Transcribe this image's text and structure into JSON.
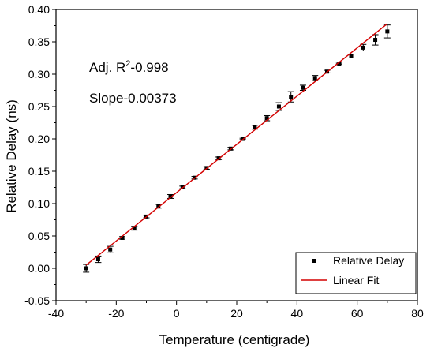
{
  "chart_data": {
    "type": "scatter",
    "title": "",
    "xlabel": "Temperature (centigrade)",
    "ylabel": "Relative Delay (ns)",
    "xlim": [
      -40,
      80
    ],
    "ylim": [
      -0.05,
      0.4
    ],
    "x_ticks": [
      "-40",
      "-20",
      "0",
      "20",
      "40",
      "60",
      "80"
    ],
    "y_ticks": [
      "-0.05",
      "0.00",
      "0.05",
      "0.10",
      "0.15",
      "0.20",
      "0.25",
      "0.30",
      "0.35",
      "0.40"
    ],
    "x_tick_values": [
      -40,
      -20,
      0,
      20,
      40,
      60,
      80
    ],
    "y_tick_values": [
      -0.05,
      0.0,
      0.05,
      0.1,
      0.15,
      0.2,
      0.25,
      0.3,
      0.35,
      0.4
    ],
    "grid": false,
    "legend_position": "bottom-right",
    "annotations": {
      "r2_prefix": "Adj. R",
      "r2_sup": "2",
      "r2_value": "-0.998",
      "slope": "Slope-0.00373"
    },
    "series": [
      {
        "name": "Relative Delay",
        "kind": "points",
        "color": "#000000",
        "x": [
          -30,
          -26,
          -22,
          -18,
          -14,
          -10,
          -6,
          -2,
          2,
          6,
          10,
          14,
          18,
          22,
          26,
          30,
          34,
          38,
          42,
          46,
          50,
          54,
          58,
          62,
          66,
          70
        ],
        "y": [
          0.0,
          0.014,
          0.029,
          0.047,
          0.062,
          0.08,
          0.096,
          0.111,
          0.125,
          0.14,
          0.155,
          0.17,
          0.185,
          0.2,
          0.218,
          0.232,
          0.25,
          0.265,
          0.279,
          0.294,
          0.304,
          0.316,
          0.328,
          0.341,
          0.353,
          0.366
        ],
        "err": [
          0.006,
          0.005,
          0.005,
          0.002,
          0.003,
          0.002,
          0.003,
          0.003,
          0.002,
          0.002,
          0.002,
          0.002,
          0.002,
          0.001,
          0.003,
          0.004,
          0.006,
          0.008,
          0.004,
          0.004,
          0.002,
          0.001,
          0.003,
          0.005,
          0.008,
          0.01
        ]
      },
      {
        "name": "Linear Fit",
        "kind": "line",
        "color": "#d40000",
        "x": [
          -30,
          70
        ],
        "y": [
          0.005,
          0.378
        ]
      }
    ]
  }
}
